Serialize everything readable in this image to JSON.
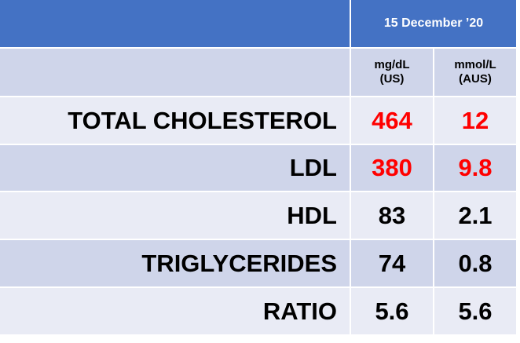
{
  "header": {
    "date": "15 December ’20"
  },
  "columns": [
    {
      "unit": "mg/dL",
      "region": "(US)"
    },
    {
      "unit": "mmol/L",
      "region": "(AUS)"
    }
  ],
  "rows": [
    {
      "label": "TOTAL CHOLESTEROL",
      "values": [
        464,
        12
      ],
      "color": "#ff0000"
    },
    {
      "label": "LDL",
      "values": [
        380,
        9.8
      ],
      "color": "#ff0000"
    },
    {
      "label": "HDL",
      "values": [
        83,
        2.1
      ],
      "color": "#000000"
    },
    {
      "label": "TRIGLYCERIDES",
      "values": [
        74,
        0.8
      ],
      "color": "#000000"
    },
    {
      "label": "RATIO",
      "values": [
        5.6,
        5.6
      ],
      "color": "#000000"
    }
  ]
}
